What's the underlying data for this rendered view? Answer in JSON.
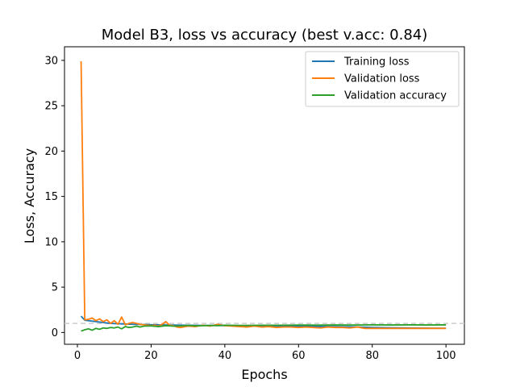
{
  "chart_data": {
    "type": "line",
    "title": "Model B3, loss vs accuracy (best v.acc: 0.84)",
    "xlabel": "Epochs",
    "ylabel": "Loss, Accuracy",
    "xlim": [
      -3.5,
      105
    ],
    "ylim": [
      -1.3,
      31.5
    ],
    "xticks": [
      0,
      20,
      40,
      60,
      80,
      100
    ],
    "yticks": [
      0,
      5,
      10,
      15,
      20,
      25,
      30
    ],
    "grid": false,
    "legend_position": "top-right",
    "reference_line": {
      "y": 1.0,
      "style": "dashed",
      "color": "#cccccc"
    },
    "series": [
      {
        "name": "Training loss",
        "color": "#1f77b4",
        "x": [
          1,
          2,
          3,
          4,
          5,
          6,
          7,
          8,
          9,
          10,
          12,
          15,
          18,
          20,
          25,
          30,
          35,
          40,
          45,
          50,
          55,
          60,
          65,
          70,
          75,
          80,
          85,
          90,
          95,
          100
        ],
        "y": [
          1.8,
          1.35,
          1.3,
          1.25,
          1.2,
          1.15,
          1.1,
          1.05,
          1.0,
          0.98,
          0.95,
          0.9,
          0.88,
          0.85,
          0.82,
          0.8,
          0.78,
          0.76,
          0.74,
          0.72,
          0.7,
          0.68,
          0.66,
          0.64,
          0.62,
          0.55,
          0.52,
          0.5,
          0.48,
          0.47
        ]
      },
      {
        "name": "Validation loss",
        "color": "#ff7f0e",
        "x": [
          1,
          2,
          3,
          4,
          5,
          6,
          7,
          8,
          9,
          10,
          11,
          12,
          13,
          14,
          15,
          16,
          17,
          18,
          19,
          20,
          21,
          22,
          23,
          24,
          25,
          26,
          27,
          28,
          30,
          32,
          34,
          36,
          38,
          40,
          42,
          44,
          46,
          48,
          50,
          52,
          54,
          56,
          58,
          60,
          62,
          64,
          66,
          68,
          70,
          72,
          74,
          76,
          78,
          80,
          82,
          84,
          86,
          88,
          90,
          92,
          94,
          96,
          98,
          100
        ],
        "y": [
          29.9,
          1.4,
          1.45,
          1.6,
          1.3,
          1.5,
          1.2,
          1.4,
          1.0,
          1.3,
          0.9,
          1.7,
          0.85,
          1.0,
          1.1,
          1.0,
          0.9,
          0.85,
          0.8,
          0.75,
          0.8,
          0.7,
          0.9,
          1.2,
          0.8,
          0.75,
          0.6,
          0.55,
          0.7,
          0.65,
          0.8,
          0.7,
          0.9,
          0.75,
          0.7,
          0.65,
          0.6,
          0.7,
          0.6,
          0.65,
          0.55,
          0.6,
          0.6,
          0.55,
          0.6,
          0.55,
          0.5,
          0.6,
          0.55,
          0.55,
          0.5,
          0.6,
          0.45,
          0.45,
          0.45,
          0.45,
          0.45,
          0.45,
          0.45,
          0.45,
          0.45,
          0.45,
          0.45,
          0.45
        ]
      },
      {
        "name": "Validation accuracy",
        "color": "#2ca02c",
        "x": [
          1,
          2,
          3,
          4,
          5,
          6,
          7,
          8,
          9,
          10,
          11,
          12,
          13,
          14,
          15,
          16,
          17,
          18,
          20,
          22,
          24,
          26,
          28,
          30,
          32,
          34,
          36,
          38,
          40,
          45,
          50,
          55,
          60,
          65,
          70,
          75,
          80,
          85,
          90,
          95,
          100
        ],
        "y": [
          0.15,
          0.3,
          0.4,
          0.25,
          0.45,
          0.35,
          0.5,
          0.45,
          0.55,
          0.5,
          0.6,
          0.4,
          0.65,
          0.55,
          0.6,
          0.7,
          0.6,
          0.7,
          0.72,
          0.65,
          0.75,
          0.7,
          0.72,
          0.78,
          0.74,
          0.75,
          0.78,
          0.76,
          0.8,
          0.78,
          0.8,
          0.8,
          0.82,
          0.81,
          0.83,
          0.82,
          0.84,
          0.83,
          0.84,
          0.83,
          0.84
        ]
      }
    ]
  }
}
